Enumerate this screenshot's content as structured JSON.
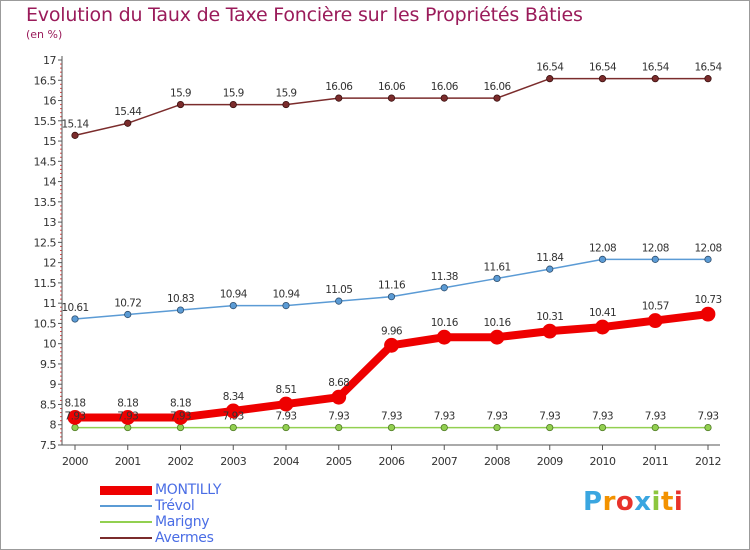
{
  "header": {
    "title": "Evolution du Taux de Taxe Foncière sur les Propriétés Bâties",
    "subtitle": "(en %)"
  },
  "logo": {
    "letters": [
      "P",
      "r",
      "o",
      "x",
      "i",
      "t",
      "i"
    ],
    "colors": [
      "#3aa6e0",
      "#f39200",
      "#e8322b",
      "#3aa6e0",
      "#8cc63e",
      "#f39200",
      "#e8322b"
    ]
  },
  "chart_data": {
    "type": "line",
    "title": "Evolution du Taux de Taxe Foncière sur les Propriétés Bâties",
    "subtitle": "(en %)",
    "x": [
      "2000",
      "2001",
      "2002",
      "2003",
      "2004",
      "2005",
      "2006",
      "2007",
      "2008",
      "2009",
      "2010",
      "2011",
      "2012"
    ],
    "ylim": [
      7.5,
      17
    ],
    "yticks": [
      "7.5",
      "8",
      "8.5",
      "9",
      "9.5",
      "10",
      "10.5",
      "11",
      "11.5",
      "12",
      "12.5",
      "13",
      "13.5",
      "14",
      "14.5",
      "15",
      "15.5",
      "16",
      "16.5",
      "17"
    ],
    "grid": false,
    "legend_position": "bottom-left",
    "series": [
      {
        "name": "MONTILLY",
        "color": "#ee0000",
        "values": [
          8.18,
          8.18,
          8.18,
          8.34,
          8.51,
          8.68,
          9.96,
          10.16,
          10.16,
          10.31,
          10.41,
          10.57,
          10.73
        ],
        "labels": [
          "8.18",
          "8.18",
          "8.18",
          "8.34",
          "8.51",
          "8.68",
          "9.96",
          "10.16",
          "10.16",
          "10.31",
          "10.41",
          "10.57",
          "10.73"
        ]
      },
      {
        "name": "Trévol",
        "color": "#5b9bd5",
        "values": [
          10.61,
          10.72,
          10.83,
          10.94,
          10.94,
          11.05,
          11.16,
          11.38,
          11.61,
          11.84,
          12.08,
          12.08,
          12.08
        ],
        "labels": [
          "10.61",
          "10.72",
          "10.83",
          "10.94",
          "10.94",
          "11.05",
          "11.16",
          "11.38",
          "11.61",
          "11.84",
          "12.08",
          "12.08",
          "12.08"
        ]
      },
      {
        "name": "Marigny",
        "color": "#92d050",
        "values": [
          7.93,
          7.93,
          7.93,
          7.93,
          7.93,
          7.93,
          7.93,
          7.93,
          7.93,
          7.93,
          7.93,
          7.93,
          7.93
        ],
        "labels": [
          "7.93",
          "7.93",
          "7.93",
          "7.93",
          "7.93",
          "7.93",
          "7.93",
          "7.93",
          "7.93",
          "7.93",
          "7.93",
          "7.93",
          "7.93"
        ]
      },
      {
        "name": "Avermes",
        "color": "#7b2c2c",
        "values": [
          15.14,
          15.44,
          15.9,
          15.9,
          15.9,
          16.06,
          16.06,
          16.06,
          16.06,
          16.54,
          16.54,
          16.54,
          16.54
        ],
        "labels": [
          "15.14",
          "15.44",
          "15.9",
          "15.9",
          "15.9",
          "16.06",
          "16.06",
          "16.06",
          "16.06",
          "16.54",
          "16.54",
          "16.54",
          "16.54"
        ]
      }
    ]
  }
}
